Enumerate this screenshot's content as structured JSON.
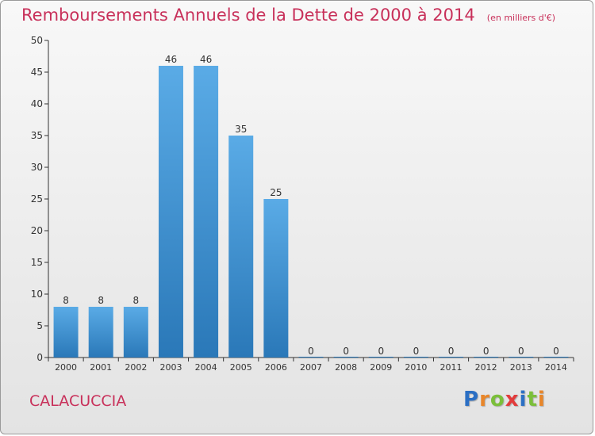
{
  "chart_data": {
    "type": "bar",
    "title": "Remboursements Annuels de la Dette de 2000 à 2014",
    "unit_note": "(en milliers d'€)",
    "categories": [
      "2000",
      "2001",
      "2002",
      "2003",
      "2004",
      "2005",
      "2006",
      "2007",
      "2008",
      "2009",
      "2010",
      "2011",
      "2012",
      "2013",
      "2014"
    ],
    "values": [
      8,
      8,
      8,
      46,
      46,
      35,
      25,
      0,
      0,
      0,
      0,
      0,
      0,
      0,
      0
    ],
    "ylim": [
      0,
      50
    ],
    "yticks": [
      0,
      5,
      10,
      15,
      20,
      25,
      30,
      35,
      40,
      45,
      50
    ],
    "grid": false,
    "data_labels": true
  },
  "commune": "CALACUCCIA",
  "logo": {
    "text": "Proxiti",
    "letters": [
      {
        "ch": "P",
        "color": "#2b6fc4"
      },
      {
        "ch": "r",
        "color": "#e8862a"
      },
      {
        "ch": "o",
        "color": "#7bbf3a"
      },
      {
        "ch": "x",
        "color": "#e23b3b"
      },
      {
        "ch": "i",
        "color": "#2b6fc4"
      },
      {
        "ch": "t",
        "color": "#7bbf3a"
      },
      {
        "ch": "i",
        "color": "#e8862a"
      }
    ]
  },
  "colors": {
    "accent": "#c8305a",
    "bar_light": "#5aabe6",
    "bar_dark": "#2a78b8",
    "axis": "#333333"
  }
}
